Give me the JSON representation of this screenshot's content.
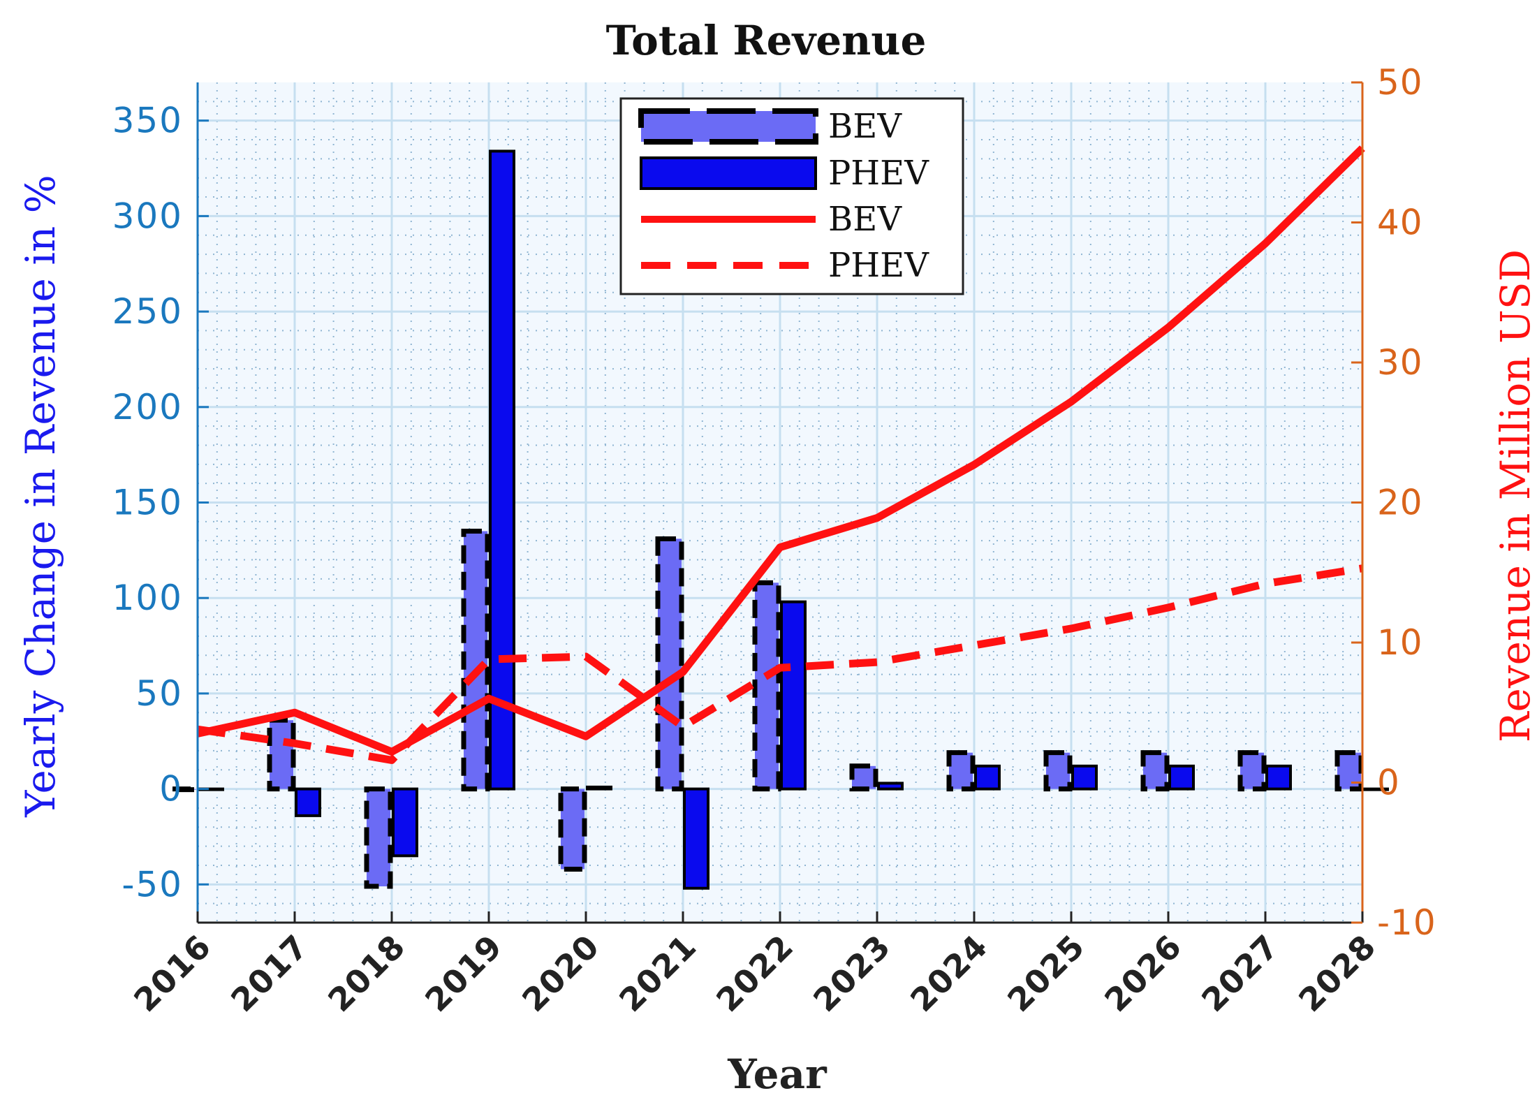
{
  "chart_data": {
    "type": "bar+line",
    "title": "Total Revenue",
    "xlabel": "Year",
    "ylabel_left": "Yearly Change in Revenue in %",
    "ylabel_right": "Revenue in Million USD",
    "categories": [
      "2016",
      "2017",
      "2018",
      "2019",
      "2020",
      "2021",
      "2022",
      "2023",
      "2024",
      "2025",
      "2026",
      "2027",
      "2028"
    ],
    "ylim_left": [
      -70,
      370
    ],
    "ylim_right": [
      -10,
      50
    ],
    "left_ticks": [
      -50,
      0,
      50,
      100,
      150,
      200,
      250,
      300,
      350
    ],
    "left_tick_labels": [
      "-50",
      "0",
      "50",
      "100",
      "150",
      "200",
      "250",
      "300",
      "350"
    ],
    "right_ticks": [
      -10,
      0,
      10,
      20,
      30,
      40,
      50
    ],
    "right_tick_labels": [
      "-10",
      "0",
      "10",
      "20",
      "30",
      "40",
      "50"
    ],
    "grid": true,
    "legend_position": "top-center",
    "bar_series": [
      {
        "name": "BEV",
        "style": "light-blue fill, black dashed edge",
        "color": "#6b6bf5",
        "values": [
          0,
          36,
          -51,
          135,
          -42,
          131,
          108,
          12,
          19,
          19,
          19,
          19,
          19
        ]
      },
      {
        "name": "PHEV",
        "style": "blue fill, black solid edge",
        "color": "#0a0aee",
        "values": [
          0,
          -14,
          -35,
          334,
          1,
          -52,
          98,
          3,
          12,
          12,
          12,
          12,
          0
        ]
      }
    ],
    "line_series": [
      {
        "name": "BEV",
        "style": "solid",
        "color": "#ff1111",
        "axis": "right",
        "values": [
          3.5,
          5.0,
          2.2,
          6.0,
          3.3,
          7.9,
          16.8,
          18.9,
          22.7,
          27.2,
          32.5,
          38.5,
          45.3
        ]
      },
      {
        "name": "PHEV",
        "style": "dashed",
        "color": "#ff1111",
        "axis": "right",
        "values": [
          3.8,
          2.8,
          1.6,
          8.8,
          9.0,
          4.0,
          8.2,
          8.6,
          9.8,
          11.0,
          12.5,
          14.2,
          15.3
        ]
      }
    ],
    "legend": [
      {
        "label": "BEV",
        "kind": "bar-dashed"
      },
      {
        "label": "PHEV",
        "kind": "bar-solid"
      },
      {
        "label": "BEV",
        "kind": "line-solid"
      },
      {
        "label": "PHEV",
        "kind": "line-dashed"
      }
    ]
  },
  "colors": {
    "left_axis": "#1a78be",
    "right_axis": "#d9641b",
    "plot_background": "#f2f8fe",
    "grid_major": "#c6dff0",
    "grid_minor": "#8fb5d2"
  }
}
